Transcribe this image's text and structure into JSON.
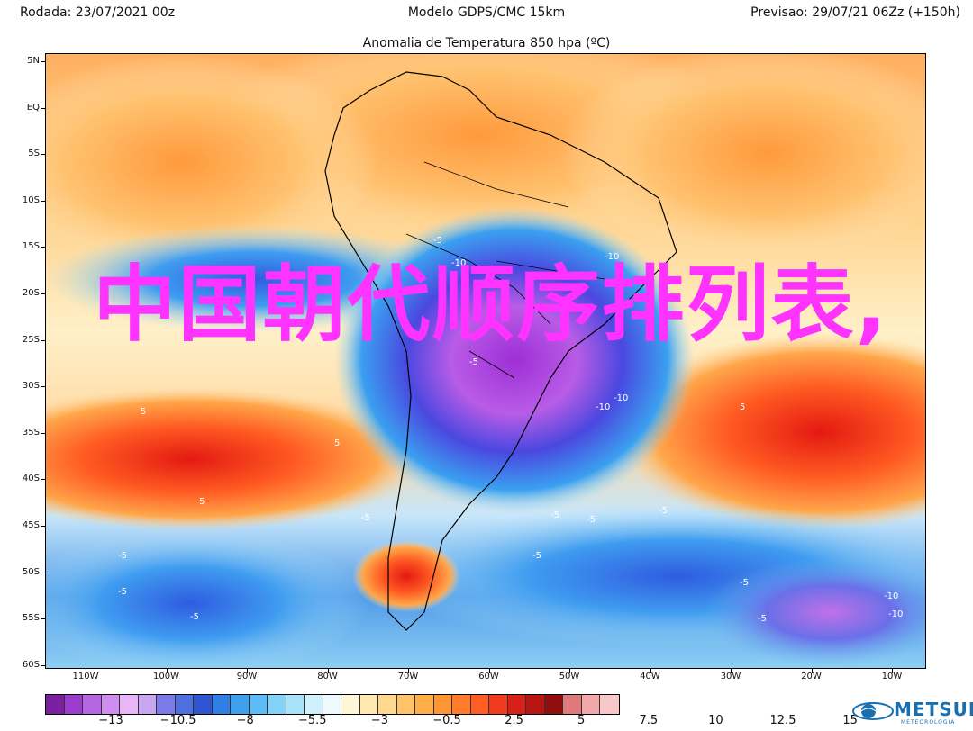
{
  "header": {
    "left": "Rodada: 23/07/2021 00z",
    "center": "Modelo GDPS/CMC 15km",
    "right": "Previsao: 29/07/21 06Zz (+150h)"
  },
  "subtitle": "Anomalia de Temperatura 850 hpa (ºC)",
  "overlay_text": "中国朝代顺序排列表,",
  "map": {
    "lat_labels": [
      "5N",
      "EQ",
      "5S",
      "10S",
      "15S",
      "20S",
      "25S",
      "30S",
      "35S",
      "40S",
      "45S",
      "50S",
      "55S",
      "60S"
    ],
    "lon_labels": [
      "110W",
      "100W",
      "90W",
      "80W",
      "70W",
      "60W",
      "50W",
      "40W",
      "30W",
      "20W",
      "10W"
    ],
    "contour_labels": [
      "-5",
      "-10",
      "-5",
      "-10",
      "-10",
      "-10",
      "-5",
      "-5",
      "-5",
      "-5",
      "5",
      "5",
      "5",
      "-5",
      "-5",
      "-5",
      "-5",
      "-5",
      "-10",
      "-10",
      "5",
      "-5"
    ]
  },
  "colorbar": {
    "ticks": [
      "−13",
      "−10.5",
      "−8",
      "−5.5",
      "−3",
      "−0.5",
      "2.5",
      "5",
      "7.5",
      "10",
      "12.5",
      "15"
    ],
    "colors": [
      "#7a1fa2",
      "#9b3ccf",
      "#b566e0",
      "#d08df0",
      "#e8b6f6",
      "#c9a6f0",
      "#7a7ae8",
      "#4f6fe0",
      "#2f55d0",
      "#2f7fe6",
      "#3fa0ee",
      "#5dbcf5",
      "#83d3f8",
      "#a8e3fa",
      "#cff0fc",
      "#eef9fe",
      "#fff6d8",
      "#ffe9b0",
      "#ffd890",
      "#ffc46a",
      "#ffae4a",
      "#ff9636",
      "#ff7c2a",
      "#ff5e22",
      "#f23a1c",
      "#d8201a",
      "#b81412",
      "#8f0f0e",
      "#e07a7a",
      "#f2a8a8",
      "#f8c8c8"
    ]
  },
  "logo": {
    "name": "METSUL",
    "tagline": "METEOROLOGIA"
  },
  "palette": {
    "overlay": "#ff33ff",
    "logo": "#1a6fae"
  }
}
